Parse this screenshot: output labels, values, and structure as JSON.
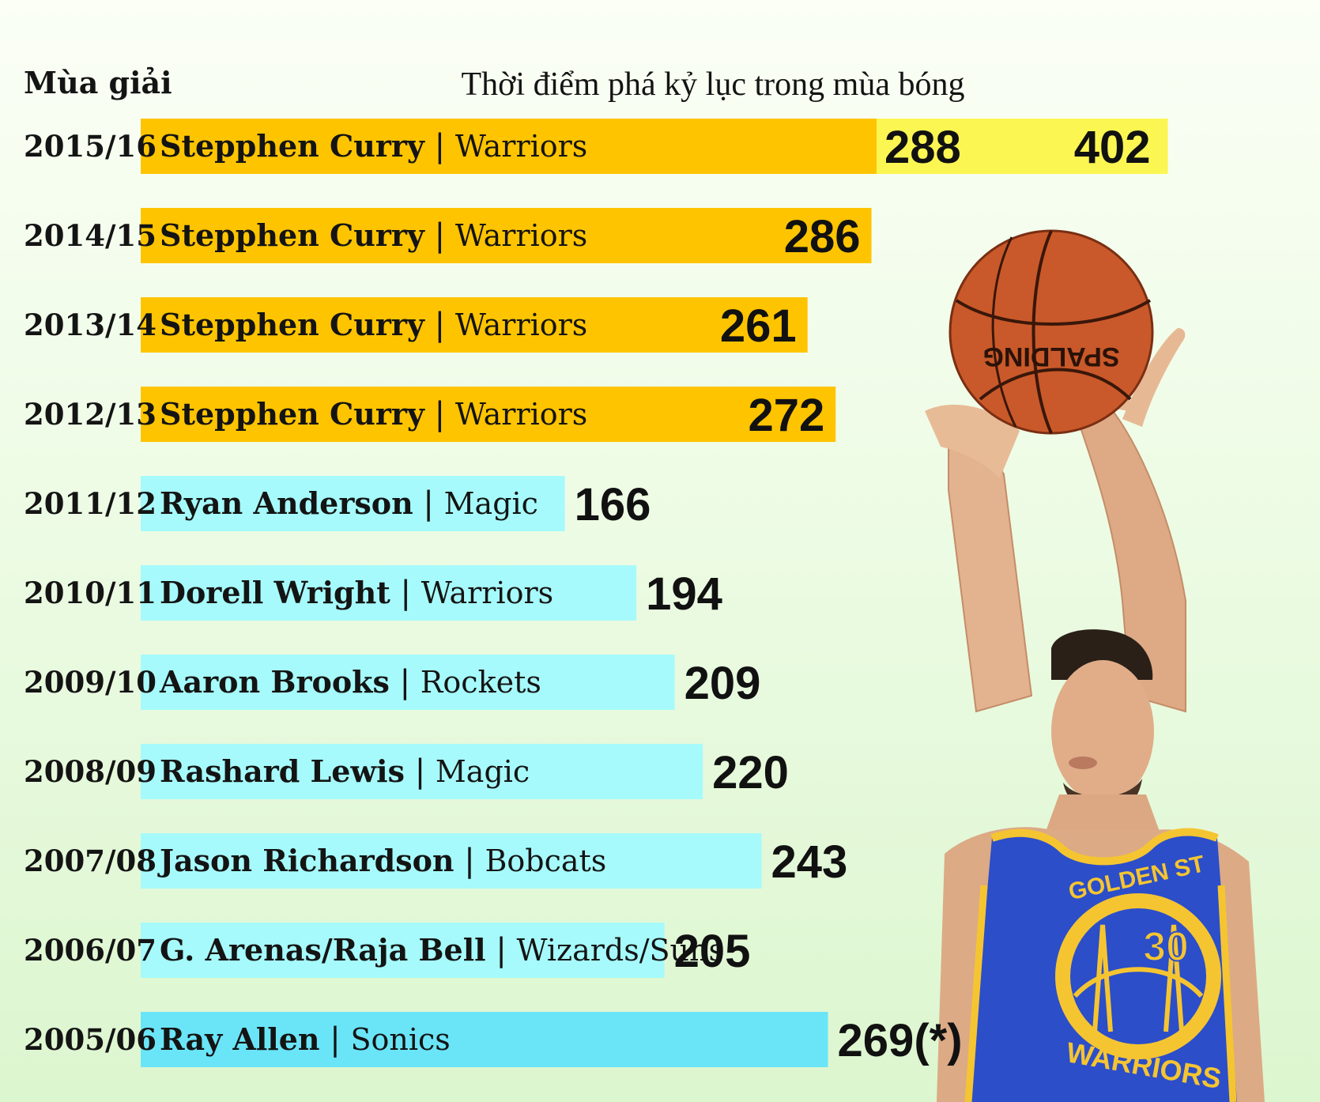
{
  "chart_data": {
    "type": "bar",
    "orientation": "horizontal",
    "header_left": "Mùa giải",
    "header_center": "Thời điểm phá kỷ lục trong mùa bóng",
    "xlim": [
      0,
      430
    ],
    "grid": false,
    "colors": {
      "curry": "#ffc400",
      "others": "#a6fafb",
      "last": "#6ae5f8",
      "extension": "#fbf652",
      "jersey": "#2c4ec9",
      "jersey_trim": "#f5c531",
      "ball": "#c9592a"
    },
    "rows": [
      {
        "season": "2015/16",
        "player": "Stepphen Curry",
        "team": "Warriors",
        "value": 288,
        "extended_value": 402,
        "value_label": "288",
        "extended_label": "402",
        "group": "curry"
      },
      {
        "season": "2014/15",
        "player": "Stepphen Curry",
        "team": "Warriors",
        "value": 286,
        "value_label": "286",
        "group": "curry"
      },
      {
        "season": "2013/14",
        "player": "Stepphen Curry",
        "team": "Warriors",
        "value": 261,
        "value_label": "261",
        "group": "curry"
      },
      {
        "season": "2012/13",
        "player": "Stepphen Curry",
        "team": "Warriors",
        "value": 272,
        "value_label": "272",
        "group": "curry"
      },
      {
        "season": "2011/12",
        "player": "Ryan Anderson",
        "team": "Magic",
        "value": 166,
        "value_label": "166",
        "group": "others"
      },
      {
        "season": "2010/11",
        "player": "Dorell Wright",
        "team": "Warriors",
        "value": 194,
        "value_label": "194",
        "group": "others"
      },
      {
        "season": "2009/10",
        "player": "Aaron Brooks",
        "team": "Rockets",
        "value": 209,
        "value_label": "209",
        "group": "others"
      },
      {
        "season": "2008/09",
        "player": "Rashard Lewis",
        "team": "Magic",
        "value": 220,
        "value_label": "220",
        "group": "others"
      },
      {
        "season": "2007/08",
        "player": "Jason Richardson",
        "team": "Bobcats",
        "value": 243,
        "value_label": "243",
        "group": "others"
      },
      {
        "season": "2006/07",
        "player": "G. Arenas/Raja Bell",
        "team": "Wizards/Suns",
        "value": 205,
        "value_label": "205",
        "group": "others"
      },
      {
        "season": "2005/06",
        "player": "Ray Allen",
        "team": "Sonics",
        "value": 269,
        "value_label": "269(*)",
        "group": "last"
      }
    ],
    "illustration": {
      "icon": "basketball-player-icon",
      "jersey_top": "GOLDEN ST",
      "jersey_bottom": "WARRIORS",
      "jersey_number": "30",
      "ball_brand": "SPALDING"
    }
  }
}
